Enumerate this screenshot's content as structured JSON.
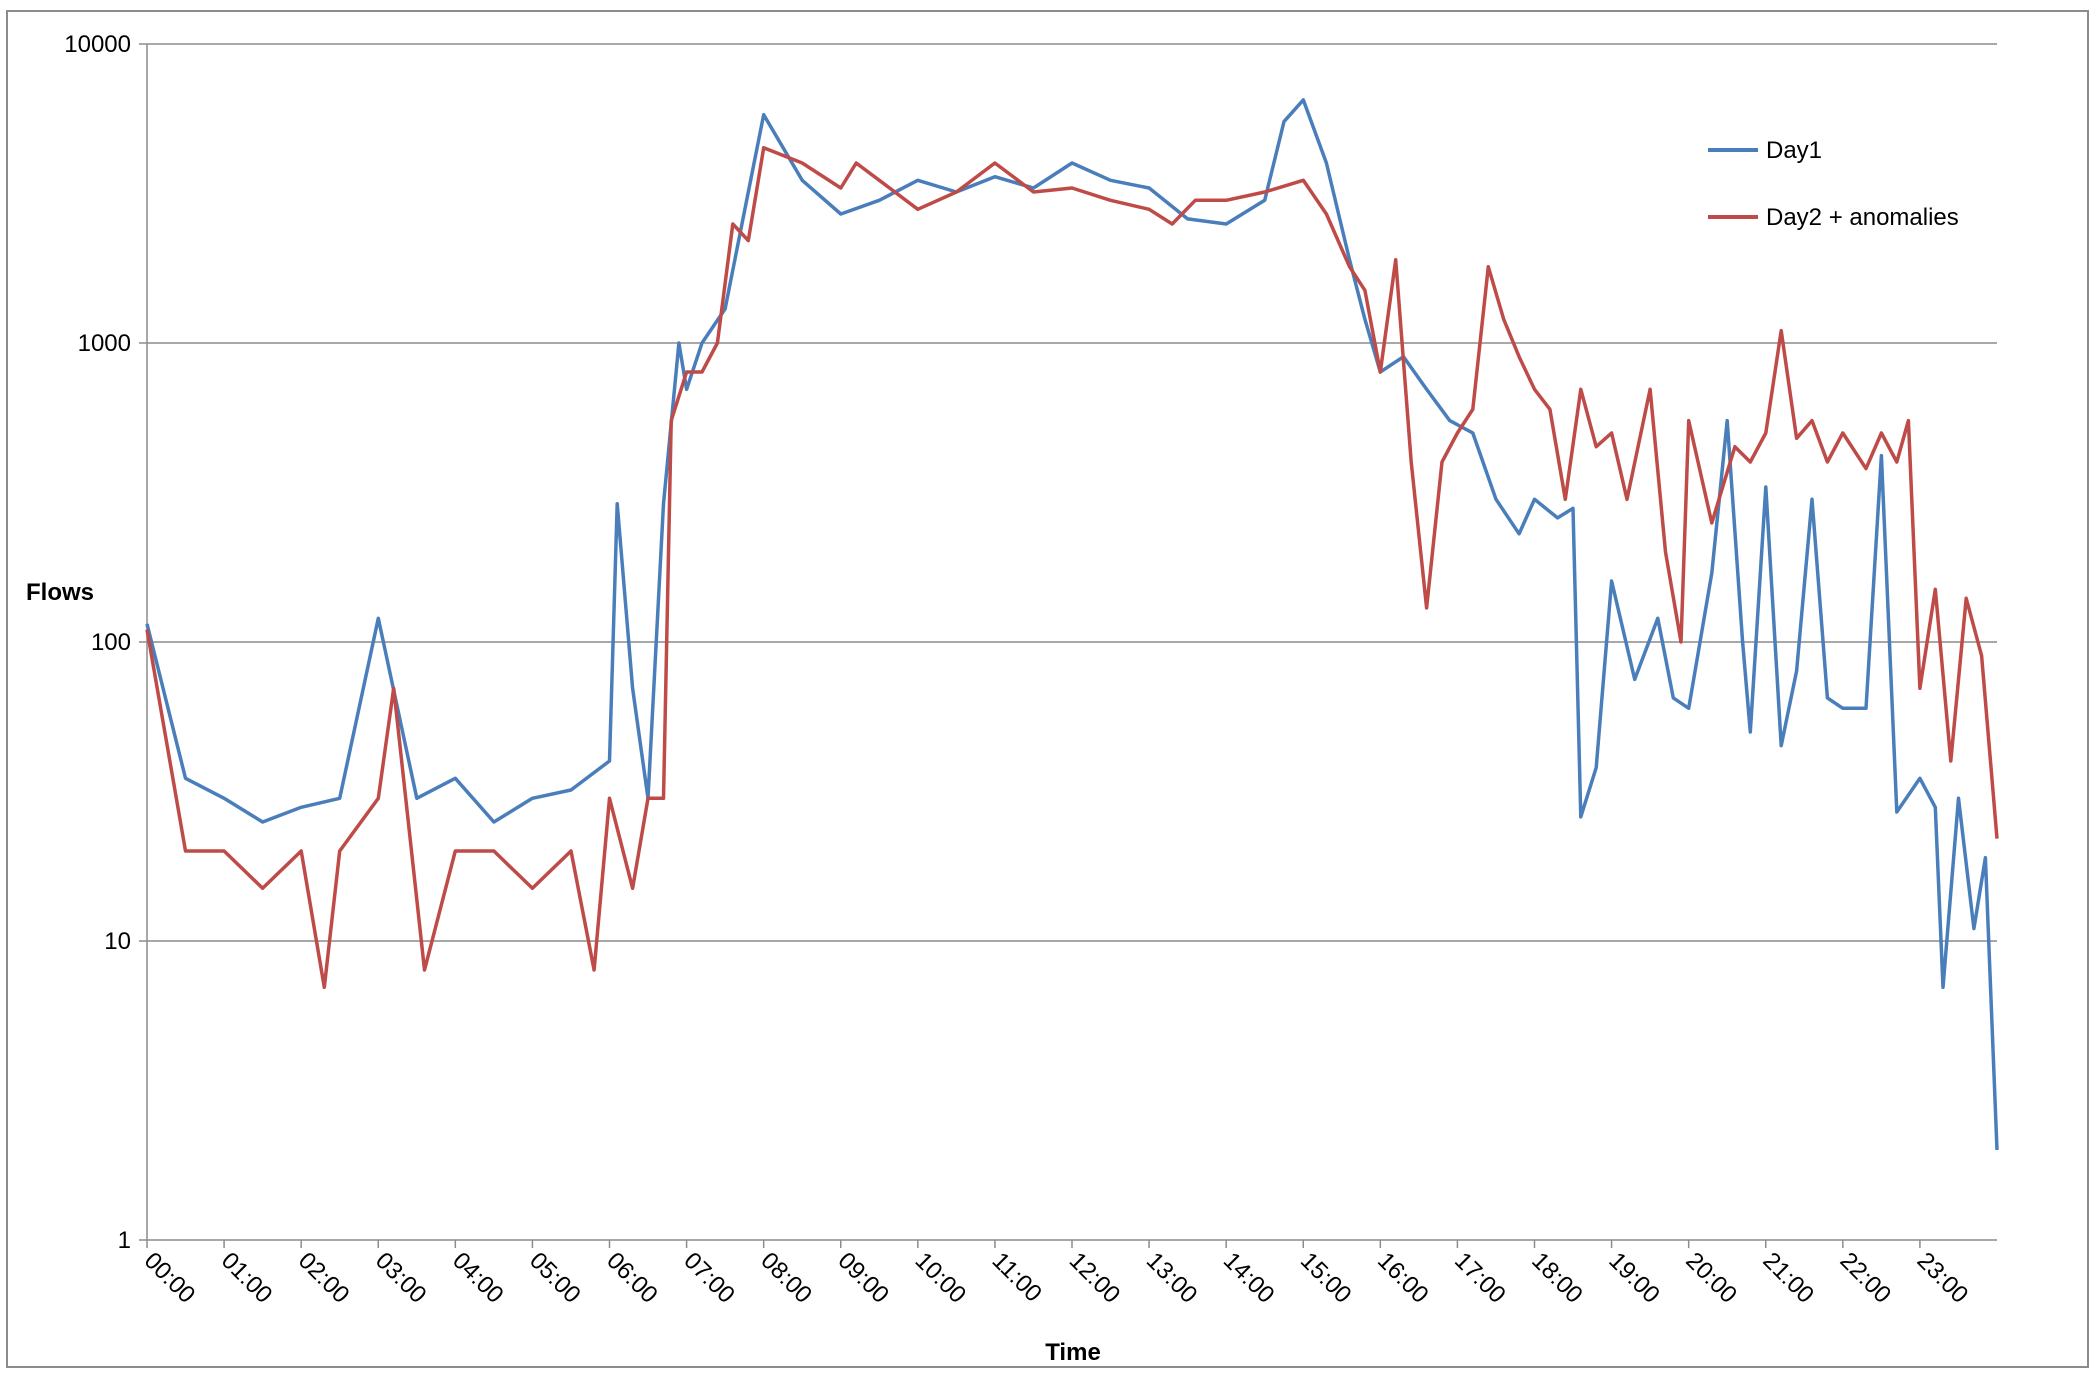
{
  "chart_data": {
    "type": "line",
    "title": "",
    "xlabel": "Time",
    "ylabel": "Flows",
    "yscale": "log",
    "ylim": [
      1,
      10000
    ],
    "yticks": [
      "1",
      "10",
      "100",
      "1000",
      "10000"
    ],
    "xlim": [
      0,
      24
    ],
    "xticks": [
      "00:00",
      "01:00",
      "02:00",
      "03:00",
      "04:00",
      "05:00",
      "06:00",
      "07:00",
      "08:00",
      "09:00",
      "10:00",
      "11:00",
      "12:00",
      "13:00",
      "14:00",
      "15:00",
      "16:00",
      "17:00",
      "18:00",
      "19:00",
      "20:00",
      "21:00",
      "22:00",
      "23:00"
    ],
    "grid": true,
    "legend_position": "top-right",
    "series": [
      {
        "name": "Day1",
        "color": "#4a7ebb",
        "x": [
          0.0,
          0.5,
          1.0,
          1.5,
          2.0,
          2.5,
          3.0,
          3.5,
          4.0,
          4.5,
          5.0,
          5.5,
          6.0,
          6.1,
          6.3,
          6.5,
          6.7,
          6.9,
          7.0,
          7.2,
          7.5,
          7.8,
          8.0,
          8.5,
          9.0,
          9.5,
          10.0,
          10.5,
          11.0,
          11.5,
          12.0,
          12.5,
          13.0,
          13.5,
          14.0,
          14.5,
          14.75,
          15.0,
          15.3,
          15.6,
          15.8,
          16.0,
          16.3,
          16.6,
          16.9,
          17.2,
          17.5,
          17.8,
          18.0,
          18.3,
          18.5,
          18.6,
          18.8,
          19.0,
          19.3,
          19.6,
          19.8,
          20.0,
          20.3,
          20.5,
          20.7,
          20.8,
          21.0,
          21.2,
          21.4,
          21.6,
          21.8,
          22.0,
          22.3,
          22.5,
          22.7,
          23.0,
          23.2,
          23.3,
          23.5,
          23.7,
          23.85,
          24.0
        ],
        "y": [
          115,
          35,
          30,
          25,
          28,
          30,
          120,
          30,
          35,
          25,
          30,
          32,
          40,
          290,
          70,
          30,
          290,
          1000,
          700,
          1000,
          1300,
          3200,
          5800,
          3500,
          2700,
          3000,
          3500,
          3200,
          3600,
          3300,
          4000,
          3500,
          3300,
          2600,
          2500,
          3000,
          5500,
          6500,
          4000,
          1900,
          1200,
          800,
          900,
          700,
          550,
          500,
          300,
          230,
          300,
          260,
          280,
          26,
          38,
          160,
          75,
          120,
          65,
          60,
          170,
          550,
          100,
          50,
          330,
          45,
          80,
          300,
          65,
          60,
          60,
          420,
          27,
          35,
          28,
          7,
          30,
          11,
          19,
          2
        ]
      },
      {
        "name": "Day2 + anomalies",
        "color": "#be4b48",
        "x": [
          0.0,
          0.5,
          1.0,
          1.5,
          2.0,
          2.3,
          2.5,
          3.0,
          3.2,
          3.6,
          4.0,
          4.5,
          5.0,
          5.5,
          5.8,
          6.0,
          6.3,
          6.5,
          6.7,
          6.8,
          7.0,
          7.2,
          7.4,
          7.6,
          7.8,
          8.0,
          8.5,
          9.0,
          9.2,
          9.5,
          10.0,
          10.5,
          11.0,
          11.5,
          12.0,
          12.5,
          13.0,
          13.3,
          13.6,
          14.0,
          14.5,
          15.0,
          15.3,
          15.6,
          15.8,
          16.0,
          16.2,
          16.4,
          16.6,
          16.8,
          17.0,
          17.2,
          17.4,
          17.6,
          17.8,
          18.0,
          18.2,
          18.4,
          18.6,
          18.8,
          19.0,
          19.2,
          19.5,
          19.7,
          19.9,
          20.0,
          20.3,
          20.6,
          20.8,
          21.0,
          21.2,
          21.4,
          21.6,
          21.8,
          22.0,
          22.3,
          22.5,
          22.7,
          22.85,
          23.0,
          23.2,
          23.4,
          23.6,
          23.8,
          24.0
        ],
        "y": [
          110,
          20,
          20,
          15,
          20,
          7,
          20,
          30,
          70,
          8,
          20,
          20,
          15,
          20,
          8,
          30,
          15,
          30,
          30,
          550,
          800,
          800,
          1000,
          2500,
          2200,
          4500,
          4000,
          3300,
          4000,
          3500,
          2800,
          3200,
          4000,
          3200,
          3300,
          3000,
          2800,
          2500,
          3000,
          3000,
          3200,
          3500,
          2700,
          1800,
          1500,
          800,
          1900,
          400,
          130,
          400,
          500,
          600,
          1800,
          1200,
          900,
          700,
          600,
          300,
          700,
          450,
          500,
          300,
          700,
          200,
          100,
          550,
          250,
          450,
          400,
          500,
          1100,
          480,
          550,
          400,
          500,
          380,
          500,
          400,
          550,
          70,
          150,
          40,
          140,
          90,
          22
        ]
      }
    ]
  }
}
